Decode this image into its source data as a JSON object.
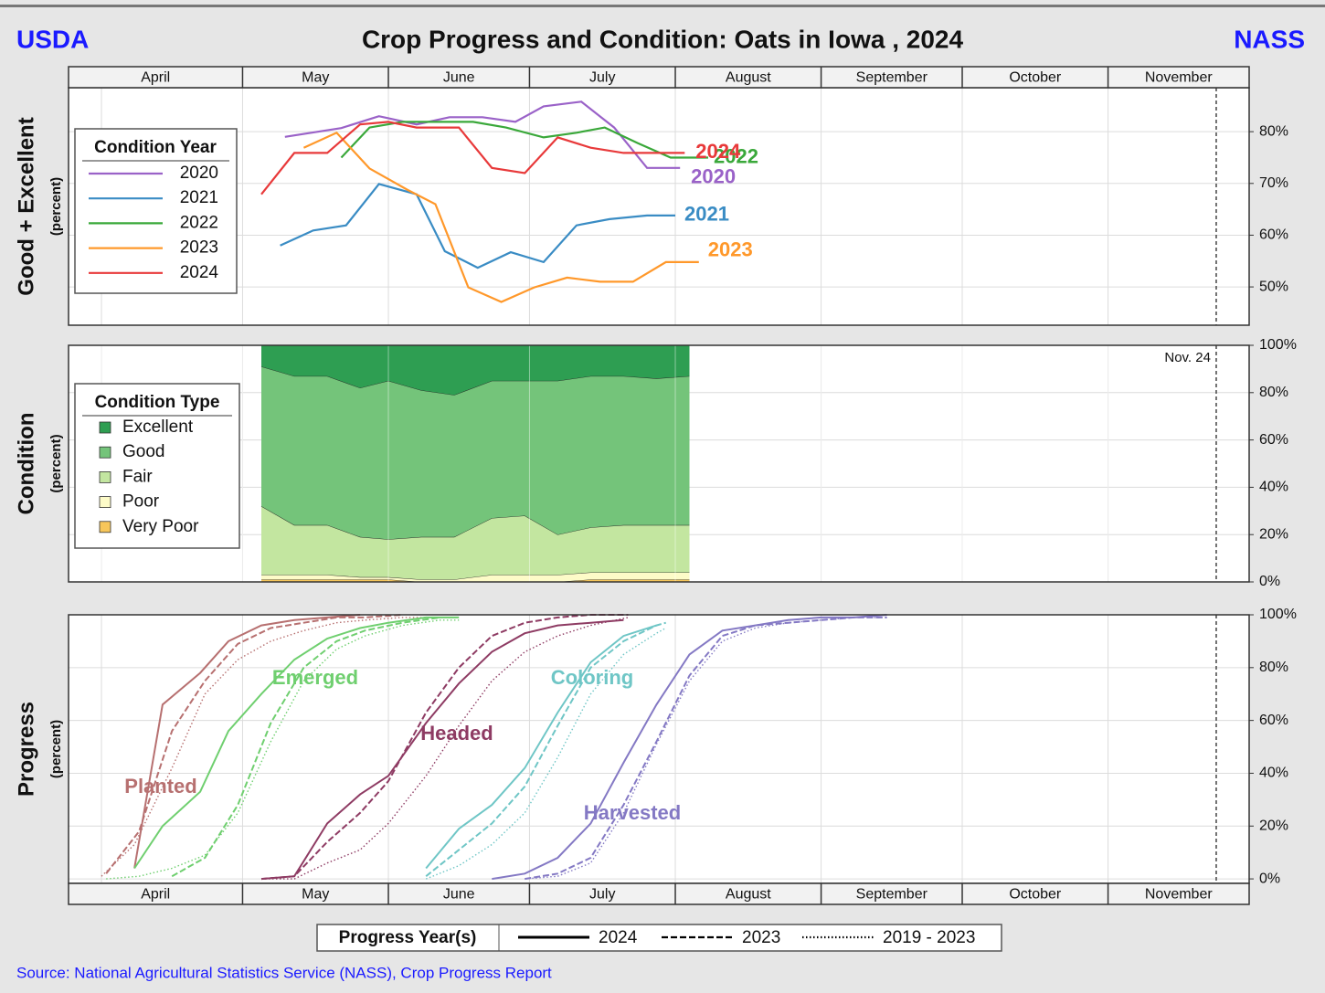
{
  "header": {
    "left": "USDA",
    "title": "Crop Progress and Condition: Oats in Iowa , 2024",
    "right": "NASS"
  },
  "source": "Source: National Agricultural Statistics Service (NASS), Crop Progress Report",
  "chart_data": [
    {
      "type": "line",
      "ylabel": "Good + Excellent",
      "yunit": "(percent)",
      "legend_title": "Condition Year",
      "xlim": [
        85,
        336
      ],
      "ylim": [
        42.6,
        88.5
      ],
      "month_header": "top",
      "vline": 329,
      "grid": true,
      "xticks": [
        {
          "value": 92,
          "label": "April"
        },
        {
          "value": 122,
          "label": "May"
        },
        {
          "value": 153,
          "label": "June"
        },
        {
          "value": 183,
          "label": "July"
        },
        {
          "value": 214,
          "label": "August"
        },
        {
          "value": 245,
          "label": "September"
        },
        {
          "value": 275,
          "label": "October"
        },
        {
          "value": 306,
          "label": "November"
        }
      ],
      "yticks": [
        {
          "value": 50,
          "label": "50%"
        },
        {
          "value": 60,
          "label": "60%"
        },
        {
          "value": 70,
          "label": "70%"
        },
        {
          "value": 80,
          "label": "80%"
        }
      ],
      "series": [
        {
          "name": "2020",
          "color": "#9a62c8",
          "x": [
            131,
            143,
            151,
            159,
            166,
            173,
            180,
            186,
            194,
            201,
            208,
            215
          ],
          "values": [
            79,
            80.7,
            83,
            81.4,
            82.8,
            82.8,
            81.9,
            84.9,
            85.8,
            80.8,
            73,
            73
          ]
        },
        {
          "name": "2021",
          "color": "#3a8cc4",
          "x": [
            130,
            137,
            144,
            151,
            159,
            165,
            172,
            179,
            186,
            193,
            200,
            208,
            214
          ],
          "values": [
            58,
            60.9,
            61.9,
            69.9,
            67.9,
            56.9,
            53.7,
            56.7,
            54.8,
            61.9,
            63.1,
            63.8,
            63.8
          ]
        },
        {
          "name": "2022",
          "color": "#3aa83a",
          "x": [
            143,
            149,
            156,
            167,
            171,
            178,
            186,
            193,
            199,
            206,
            213,
            221
          ],
          "values": [
            75,
            80.8,
            81.9,
            81.9,
            81.9,
            80.8,
            78.9,
            79.8,
            80.8,
            77.8,
            75,
            75
          ]
        },
        {
          "name": "2023",
          "color": "#ff982a",
          "x": [
            135,
            142,
            149,
            157,
            163,
            170,
            177,
            184,
            191,
            198,
            205,
            212,
            219
          ],
          "values": [
            76.9,
            79.8,
            72.9,
            68.8,
            66,
            49.9,
            47.1,
            49.9,
            51.8,
            51,
            51,
            54.8,
            54.8
          ]
        },
        {
          "name": "2024",
          "color": "#e8393a",
          "x": [
            126,
            133,
            140,
            147,
            153,
            159,
            168,
            175,
            182,
            189,
            196,
            203,
            210,
            216
          ],
          "values": [
            67.9,
            75.9,
            75.9,
            81.4,
            81.9,
            80.8,
            80.8,
            73,
            72,
            78.9,
            76.9,
            75.9,
            75.9,
            75.9
          ]
        }
      ]
    },
    {
      "type": "stacked-area",
      "ylabel": "Condition",
      "yunit": "(percent)",
      "legend_title": "Condition Type",
      "xlim": [
        85,
        336
      ],
      "ylim": [
        0,
        100
      ],
      "vline": 329,
      "vline_label": "Nov. 24",
      "grid": true,
      "xticks": [
        92,
        122,
        153,
        183,
        214,
        245,
        275,
        306
      ],
      "yticks": [
        {
          "value": 0,
          "label": "0%"
        },
        {
          "value": 20,
          "label": "20%"
        },
        {
          "value": 40,
          "label": "40%"
        },
        {
          "value": 60,
          "label": "60%"
        },
        {
          "value": 80,
          "label": "80%"
        },
        {
          "value": 100,
          "label": "100%"
        }
      ],
      "x": [
        126,
        133,
        140,
        147,
        153,
        160,
        167,
        175,
        182,
        189,
        196,
        203,
        210,
        217
      ],
      "series": [
        {
          "name": "Excellent",
          "color": "#2e9e52",
          "values": [
            9,
            13,
            13,
            18,
            15,
            19,
            21,
            15,
            15,
            15,
            13,
            13,
            14,
            13
          ]
        },
        {
          "name": "Good",
          "color": "#74c47a",
          "values": [
            59,
            63,
            63,
            63,
            67,
            62,
            60,
            58,
            57,
            65,
            64,
            63,
            62,
            63
          ]
        },
        {
          "name": "Fair",
          "color": "#c3e6a0",
          "values": [
            29,
            21,
            21,
            17,
            16,
            18,
            18,
            24,
            25,
            17,
            19,
            20,
            20,
            20
          ]
        },
        {
          "name": "Poor",
          "color": "#fdfbc8",
          "values": [
            2,
            2,
            2,
            1,
            1,
            1,
            1,
            3,
            3,
            3,
            3,
            3,
            3,
            3
          ]
        },
        {
          "name": "Very Poor",
          "color": "#f7c65a",
          "values": [
            1,
            1,
            1,
            1,
            1,
            0,
            0,
            0,
            0,
            0,
            1,
            1,
            1,
            1
          ]
        }
      ]
    },
    {
      "type": "progress",
      "ylabel": "Progress",
      "yunit": "(percent)",
      "legend_title": "Progress Year(s)",
      "xlim": [
        85,
        336
      ],
      "ylim": [
        -1.7,
        100
      ],
      "month_header": "bottom",
      "vline": 329,
      "grid": true,
      "xticks": [
        {
          "value": 92,
          "label": "April"
        },
        {
          "value": 122,
          "label": "May"
        },
        {
          "value": 153,
          "label": "June"
        },
        {
          "value": 183,
          "label": "July"
        },
        {
          "value": 214,
          "label": "August"
        },
        {
          "value": 245,
          "label": "September"
        },
        {
          "value": 275,
          "label": "October"
        },
        {
          "value": 306,
          "label": "November"
        }
      ],
      "yticks": [
        {
          "value": 0,
          "label": "0%"
        },
        {
          "value": 20,
          "label": "20%"
        },
        {
          "value": 40,
          "label": "40%"
        },
        {
          "value": 60,
          "label": "60%"
        },
        {
          "value": 80,
          "label": "80%"
        },
        {
          "value": 100,
          "label": "100%"
        }
      ],
      "legend_entries": [
        {
          "name": "2024",
          "style": "solid"
        },
        {
          "name": "2023",
          "style": "dashed"
        },
        {
          "name": "2019 - 2023",
          "style": "dotted"
        }
      ],
      "stages": [
        {
          "name": "Planted",
          "color": "#b77070",
          "series": [
            {
              "x": [
                99,
                105,
                113,
                119,
                126,
                133,
                140,
                147
              ],
              "values": [
                4,
                66,
                78,
                90,
                96,
                98,
                99,
                100
              ]
            },
            {
              "x": [
                93,
                100,
                107,
                114,
                121,
                128,
                135,
                142,
                148,
                156
              ],
              "values": [
                2,
                18,
                56,
                75,
                89,
                95,
                97,
                99,
                99,
                100
              ]
            },
            {
              "x": [
                92,
                99,
                107,
                114,
                121,
                128,
                135,
                142,
                148,
                156,
                164
              ],
              "values": [
                1,
                13,
                42,
                70,
                83,
                90,
                94,
                97,
                98,
                99,
                99
              ]
            }
          ]
        },
        {
          "name": "Emerged",
          "color": "#6fcf6f",
          "series": [
            {
              "x": [
                99,
                105,
                113,
                119,
                126,
                133,
                140,
                147,
                153,
                161,
                168
              ],
              "values": [
                4,
                20,
                33,
                56,
                70,
                83,
                91,
                95,
                97,
                99,
                99
              ]
            },
            {
              "x": [
                107,
                114,
                121,
                128,
                135,
                142,
                148,
                156,
                164
              ],
              "values": [
                1,
                8,
                28,
                59,
                80,
                90,
                94,
                97,
                99
              ]
            },
            {
              "x": [
                93,
                100,
                107,
                114,
                121,
                128,
                135,
                142,
                148,
                156,
                164,
                168
              ],
              "values": [
                0,
                1,
                4,
                9,
                25,
                52,
                75,
                87,
                92,
                96,
                98,
                98
              ]
            }
          ]
        },
        {
          "name": "Headed",
          "color": "#8e3b63",
          "series": [
            {
              "x": [
                126,
                133,
                140,
                147,
                153,
                161,
                168,
                175,
                182,
                189,
                196,
                203
              ],
              "values": [
                0,
                1,
                21,
                32,
                39,
                59,
                74,
                86,
                93,
                96,
                97,
                98
              ]
            },
            {
              "x": [
                126,
                133,
                140,
                147,
                153,
                161,
                168,
                175,
                182,
                189,
                196,
                204
              ],
              "values": [
                0,
                1,
                14,
                25,
                37,
                63,
                80,
                92,
                97,
                99,
                100,
                100
              ]
            },
            {
              "x": [
                126,
                133,
                140,
                147,
                153,
                161,
                168,
                175,
                182,
                189,
                196,
                204
              ],
              "values": [
                0,
                0,
                6,
                11,
                21,
                39,
                58,
                75,
                86,
                92,
                96,
                99
              ]
            }
          ]
        },
        {
          "name": "Coloring",
          "color": "#6fc6c6",
          "series": [
            {
              "x": [
                161,
                168,
                175,
                182,
                189,
                196,
                203,
                210
              ],
              "values": [
                4,
                19,
                28,
                42,
                63,
                82,
                92,
                96
              ]
            },
            {
              "x": [
                161,
                168,
                175,
                182,
                189,
                196,
                203,
                210,
                212
              ],
              "values": [
                1,
                11,
                21,
                35,
                58,
                80,
                90,
                96,
                97
              ]
            },
            {
              "x": [
                161,
                168,
                175,
                182,
                189,
                196,
                203,
                210,
                212
              ],
              "values": [
                0,
                5,
                13,
                25,
                46,
                70,
                85,
                93,
                95
              ]
            }
          ]
        },
        {
          "name": "Harvested",
          "color": "#8479c4",
          "series": [
            {
              "x": [
                175,
                182,
                189,
                196,
                203,
                210,
                217,
                224,
                231,
                238,
                245,
                252,
                259
              ],
              "values": [
                0,
                2,
                8,
                21,
                44,
                66,
                85,
                94,
                96,
                98,
                99,
                99,
                100
              ]
            },
            {
              "x": [
                182,
                189,
                196,
                203,
                210,
                217,
                224,
                231,
                238,
                245,
                252,
                259
              ],
              "values": [
                0,
                2,
                8,
                28,
                52,
                77,
                92,
                96,
                97,
                98,
                99,
                99
              ]
            },
            {
              "x": [
                182,
                189,
                196,
                203,
                210,
                217,
                224,
                231,
                238,
                245,
                252,
                259
              ],
              "values": [
                0,
                1,
                6,
                25,
                51,
                75,
                90,
                95,
                97,
                98,
                99,
                99
              ]
            }
          ]
        }
      ]
    }
  ]
}
